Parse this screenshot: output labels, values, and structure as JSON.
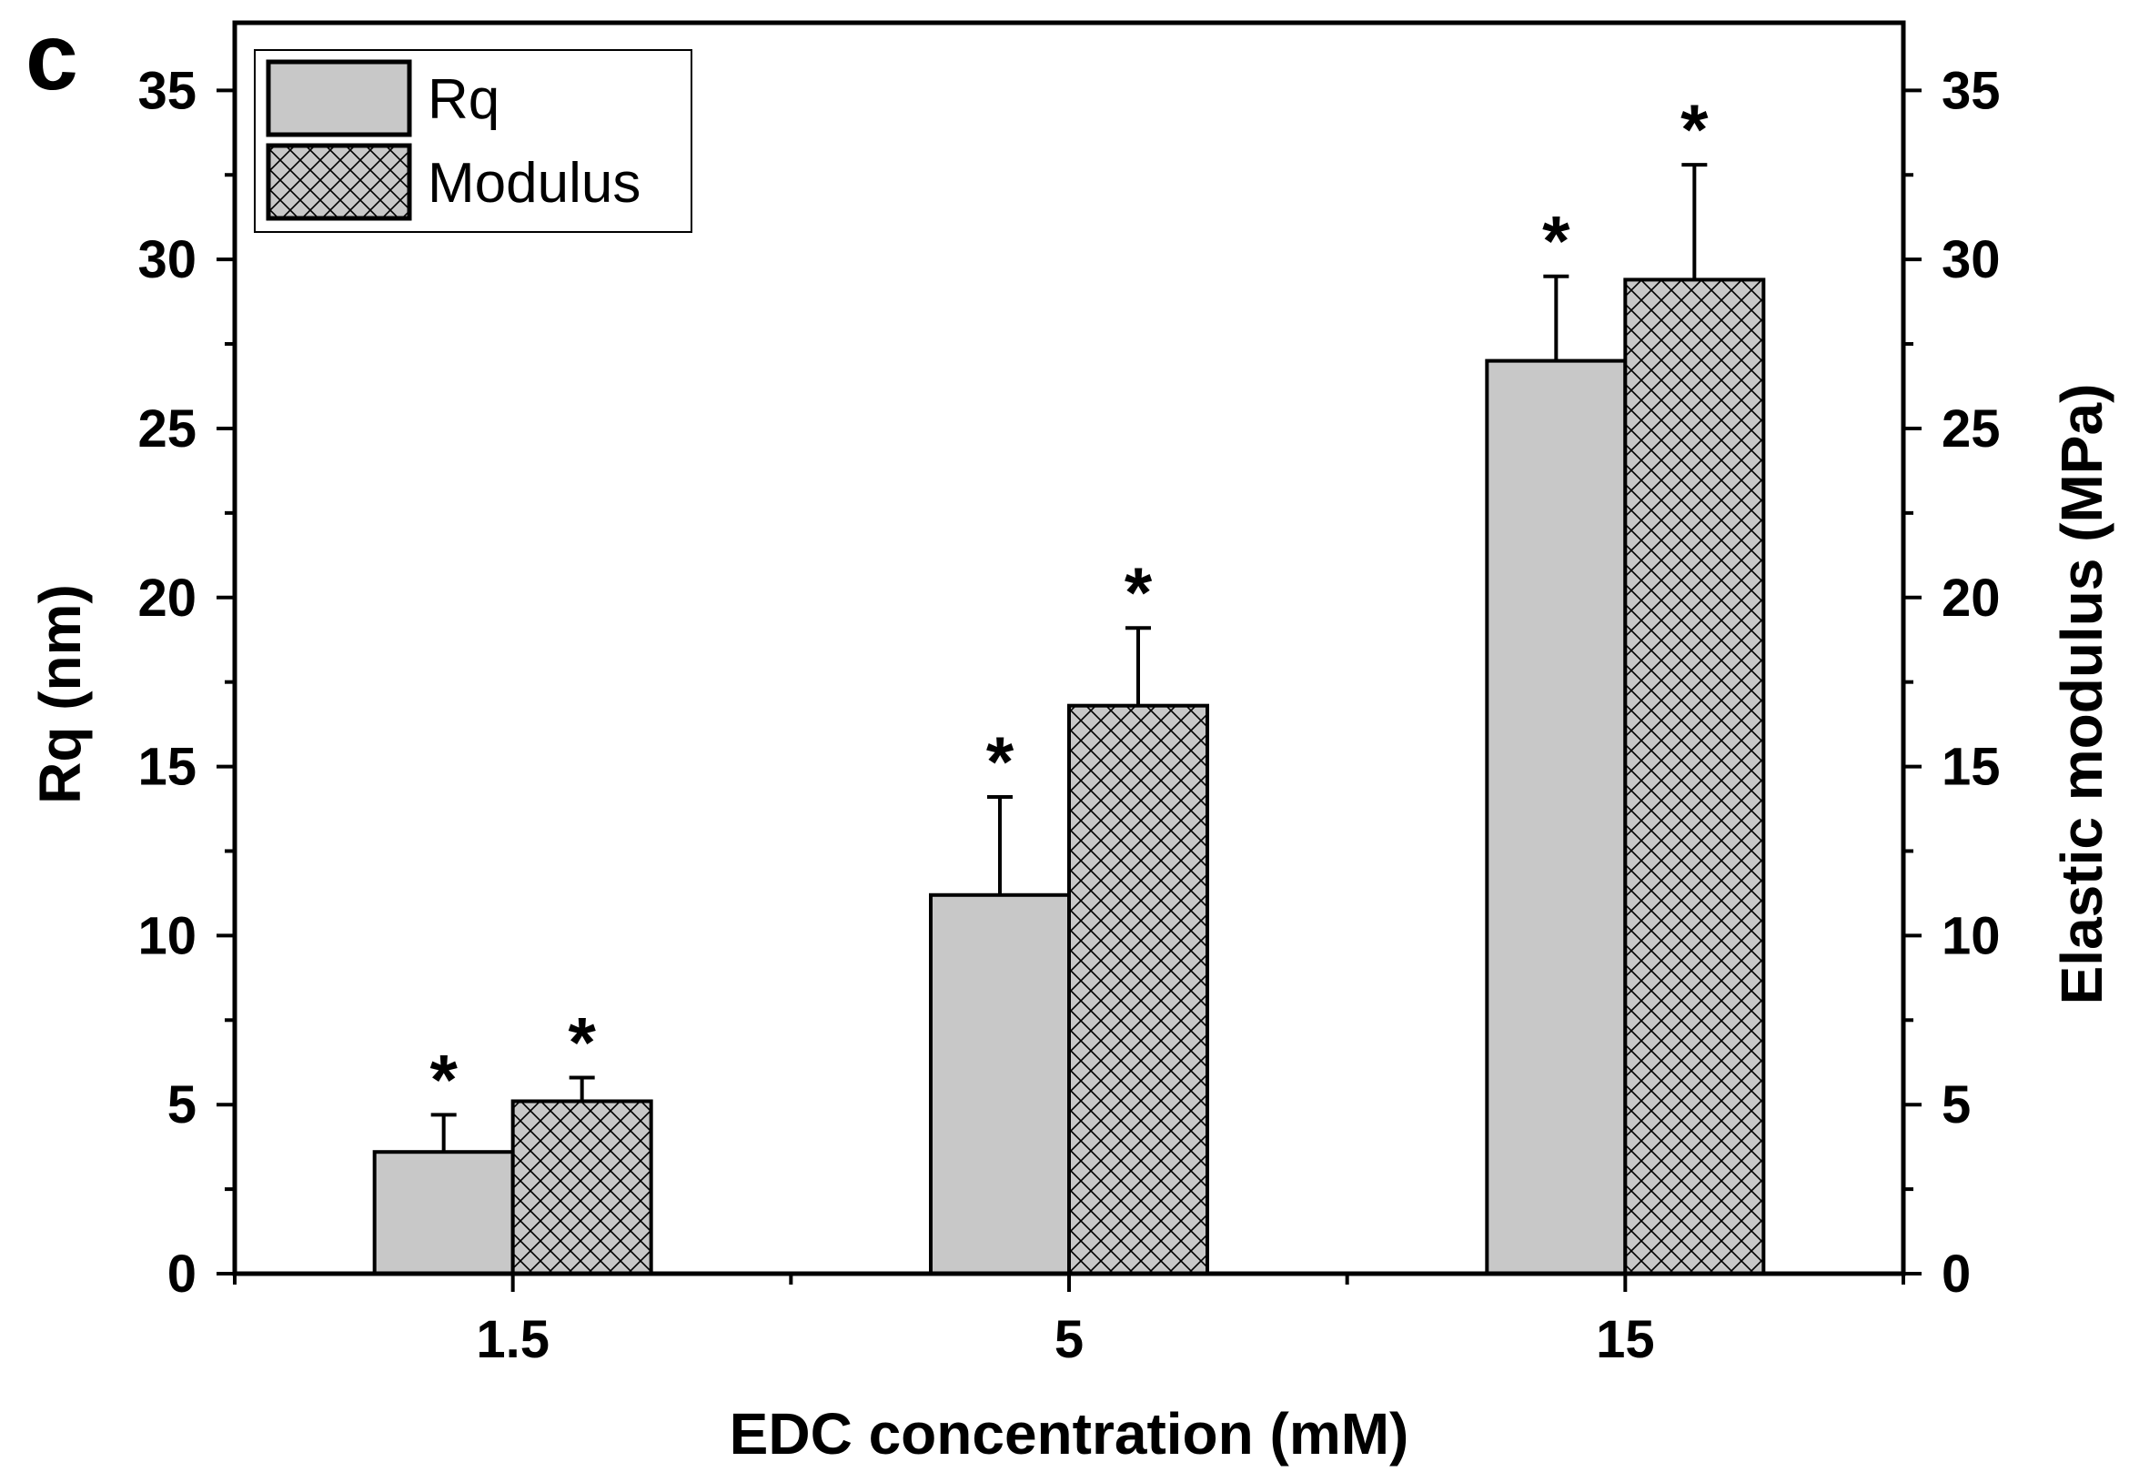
{
  "panel_label": "c",
  "chart_data": {
    "type": "bar",
    "categories": [
      "1.5",
      "5",
      "15"
    ],
    "xlabel": "EDC concentration (mM)",
    "ylabel": "Rq (nm)",
    "y2label": "Elastic modulus (MPa)",
    "ylim": [
      0,
      37
    ],
    "yticks": [
      0,
      5,
      10,
      15,
      20,
      25,
      30,
      35
    ],
    "y2lim": [
      0,
      37
    ],
    "y2ticks": [
      0,
      5,
      10,
      15,
      20,
      25,
      30,
      35
    ],
    "legend_position": "top-left",
    "grid": false,
    "series": [
      {
        "name": "Rq",
        "axis": "left",
        "fill": "solid",
        "color": "#c8c8c8",
        "values": [
          3.6,
          11.2,
          27.0
        ],
        "errors": [
          1.1,
          2.9,
          2.5
        ],
        "annotations": [
          "*",
          "*",
          "*"
        ]
      },
      {
        "name": "Modulus",
        "axis": "right",
        "fill": "crosshatch",
        "color": "#c8c8c8",
        "values": [
          5.1,
          16.8,
          29.4
        ],
        "errors": [
          0.7,
          2.3,
          3.4
        ],
        "annotations": [
          "*",
          "*",
          "*"
        ]
      }
    ]
  }
}
